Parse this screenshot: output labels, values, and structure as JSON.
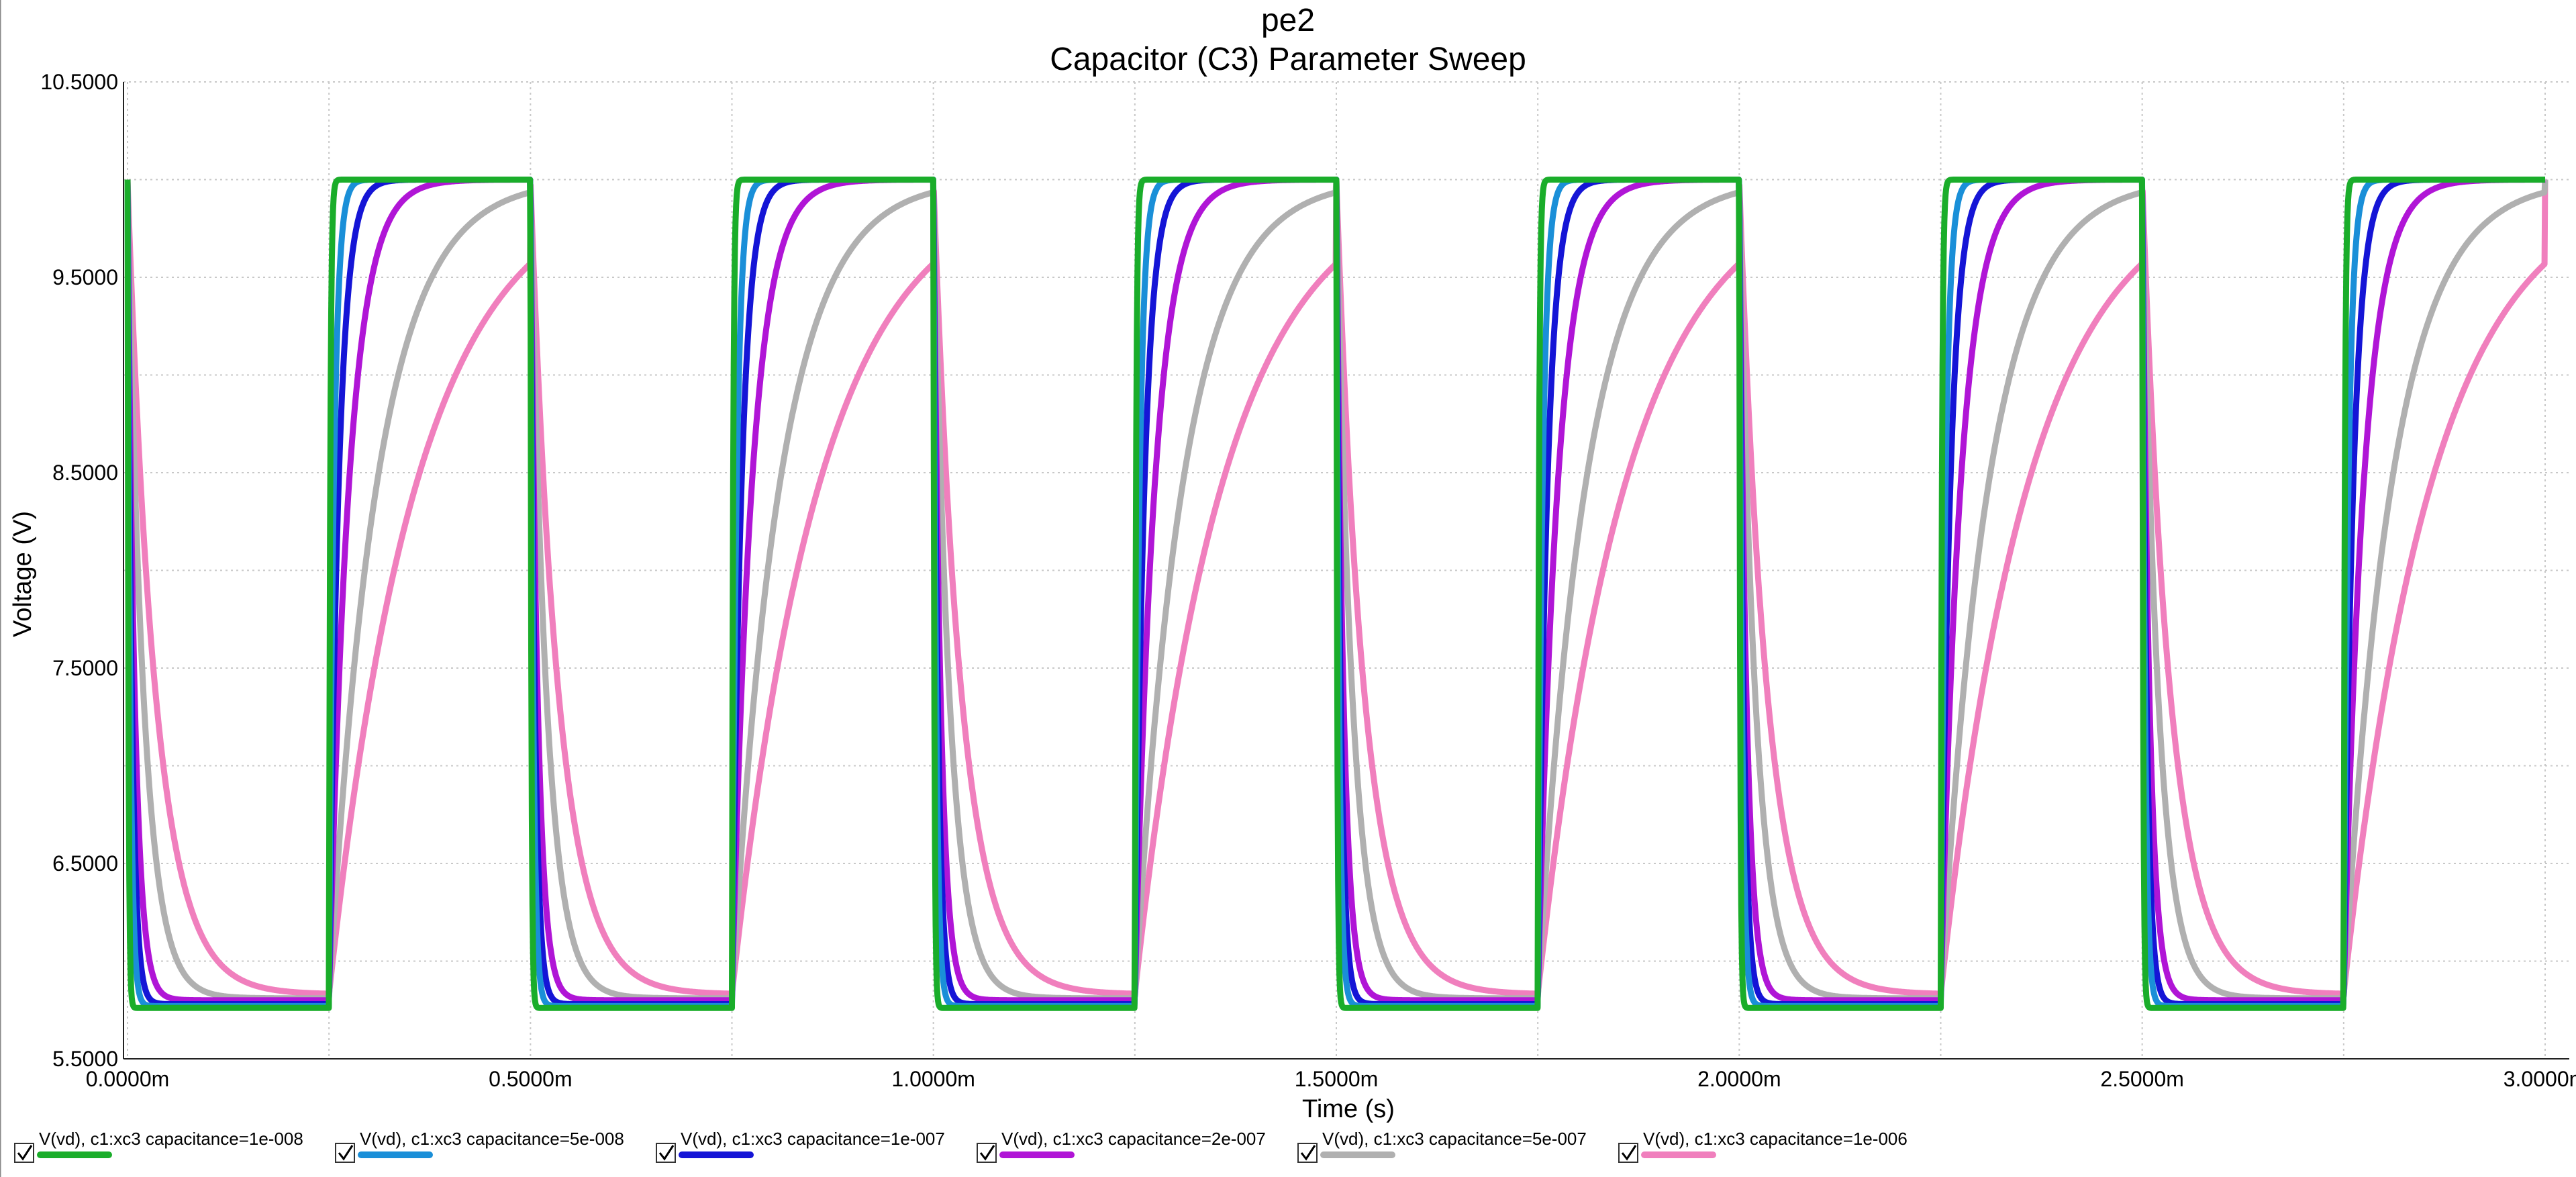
{
  "header": {
    "title": "pe2",
    "subtitle": "Capacitor (C3) Parameter Sweep"
  },
  "chart_data": {
    "type": "line",
    "title": "pe2",
    "subtitle": "Capacitor (C3) Parameter Sweep",
    "xlabel": "Time (s)",
    "ylabel": "Voltage (V)",
    "xlim": [
      0,
      3.0
    ],
    "ylim": [
      5.5,
      10.5
    ],
    "x_unit": "ms",
    "x_ticks": [
      {
        "value": 0,
        "label": "0.0000m"
      },
      {
        "value": 0.5,
        "label": "0.5000m"
      },
      {
        "value": 1.0,
        "label": "1.0000m"
      },
      {
        "value": 1.5,
        "label": "1.5000m"
      },
      {
        "value": 2.0,
        "label": "2.0000m"
      },
      {
        "value": 2.5,
        "label": "2.5000m"
      },
      {
        "value": 3.0,
        "label": "3.0000m"
      }
    ],
    "y_ticks": [
      {
        "value": 5.5,
        "label": "5.5000"
      },
      {
        "value": 6.5,
        "label": "6.5000"
      },
      {
        "value": 7.5,
        "label": "7.5000"
      },
      {
        "value": 8.5,
        "label": "8.5000"
      },
      {
        "value": 9.5,
        "label": "9.5000"
      },
      {
        "value": 10.5,
        "label": "10.5000"
      }
    ],
    "grid": true,
    "legend_position": "bottom",
    "square_wave": {
      "period_ms": 0.5,
      "high_ms": 0.25,
      "v_high": 10.0
    },
    "series": [
      {
        "name": "V(vd), c1:xc3 capacitance=1e-008",
        "color": "#1aad2a",
        "capacitance": 1e-08,
        "v_low": 5.76,
        "tau_fall_ms": 0.0012,
        "tau_rise_ms": 0.0015
      },
      {
        "name": "V(vd), c1:xc3 capacitance=5e-008",
        "color": "#1a8fd8",
        "capacitance": 5e-08,
        "v_low": 5.77,
        "tau_fall_ms": 0.0035,
        "tau_rise_ms": 0.006
      },
      {
        "name": "V(vd), c1:xc3 capacitance=1e-007",
        "color": "#1515d6",
        "capacitance": 1e-07,
        "v_low": 5.78,
        "tau_fall_ms": 0.0055,
        "tau_rise_ms": 0.012
      },
      {
        "name": "V(vd), c1:xc3 capacitance=2e-007",
        "color": "#b015d6",
        "capacitance": 2e-07,
        "v_low": 5.8,
        "tau_fall_ms": 0.009,
        "tau_rise_ms": 0.025
      },
      {
        "name": "V(vd), c1:xc3 capacitance=5e-007",
        "color": "#b0b0b0",
        "capacitance": 5e-07,
        "v_low": 5.81,
        "tau_fall_ms": 0.02,
        "tau_rise_ms": 0.06
      },
      {
        "name": "V(vd), c1:xc3 capacitance=1e-006",
        "color": "#f07fbd",
        "capacitance": 1e-06,
        "v_low": 5.83,
        "tau_fall_ms": 0.035,
        "tau_rise_ms": 0.11
      }
    ]
  },
  "legend": {
    "items": [
      {
        "label": "V(vd), c1:xc3 capacitance=1e-008",
        "color": "#1aad2a",
        "checked": true
      },
      {
        "label": "V(vd), c1:xc3 capacitance=5e-008",
        "color": "#1a8fd8",
        "checked": true
      },
      {
        "label": "V(vd), c1:xc3 capacitance=1e-007",
        "color": "#1515d6",
        "checked": true
      },
      {
        "label": "V(vd), c1:xc3 capacitance=2e-007",
        "color": "#b015d6",
        "checked": true
      },
      {
        "label": "V(vd), c1:xc3 capacitance=5e-007",
        "color": "#b0b0b0",
        "checked": true
      },
      {
        "label": "V(vd), c1:xc3 capacitance=1e-006",
        "color": "#f07fbd",
        "checked": true
      }
    ]
  }
}
